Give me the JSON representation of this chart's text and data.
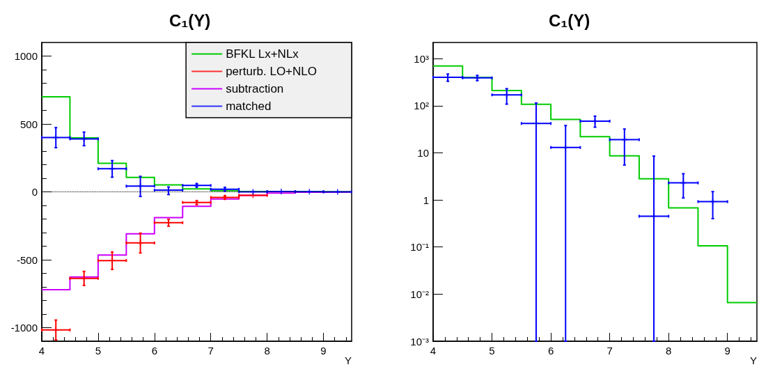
{
  "chart_data": [
    {
      "type": "histogram",
      "title": "C₁(Y)",
      "xlabel": "Y",
      "bins": [
        4,
        4.5,
        5,
        5.5,
        6,
        6.5,
        7,
        7.5,
        8,
        8.5,
        9,
        9.5
      ],
      "xlim": [
        4,
        9.5
      ],
      "xticks": [
        4,
        5,
        6,
        7,
        8,
        9
      ],
      "ylim": [
        -1100,
        1100
      ],
      "yticks": [
        -1000,
        -500,
        0,
        500,
        1000
      ],
      "legend": "top right",
      "marker": "cross",
      "ref_lines": [
        {
          "axis": "y",
          "value": 0,
          "line_style": "dotted",
          "color": "#000000"
        }
      ],
      "series": [
        {
          "name": "BFKL Lx+NLx",
          "color": "#00cc00",
          "values": [
            700,
            398,
            210,
            107,
            51,
            22,
            8.6,
            2.8,
            0.68,
            0.106,
            0.0066
          ]
        },
        {
          "name": "perturb. LO+NLO",
          "type": "scatter",
          "color": "#ff0000",
          "x": [
            4.25,
            4.75,
            5.25,
            5.75,
            6.25,
            6.75,
            7.25,
            7.75
          ],
          "values": [
            -1017,
            -637,
            -506,
            -376,
            -227,
            -78,
            -41,
            -26
          ],
          "errors": [
            [
              -1090,
              -944
            ],
            [
              -689,
              -586
            ],
            [
              -571,
              -443
            ],
            [
              -450,
              -304
            ],
            [
              -253,
              -202
            ],
            [
              -94,
              -66
            ],
            [
              -53,
              -29
            ],
            null
          ],
          "xerrors": [
            0.25,
            0.25,
            0.25,
            0.25,
            0.25,
            0.25,
            0.25,
            0.25
          ]
        },
        {
          "name": "subtraction",
          "color": "#cc00ff",
          "values": [
            -720,
            -627,
            -465,
            -309,
            -190,
            -106,
            -53,
            -26,
            -9,
            -3,
            -1
          ]
        },
        {
          "name": "matched",
          "type": "scatter",
          "color": "#0000ff",
          "x": [
            4.25,
            4.75,
            5.25,
            5.75,
            6.25,
            6.75,
            7.25,
            7.75,
            8.25,
            8.75,
            9.25
          ],
          "values": [
            400,
            390,
            170,
            42,
            13,
            47,
            19,
            0.45,
            2.3,
            0.92,
            0
          ],
          "errors": [
            [
              325,
              473
            ],
            [
              340,
              440
            ],
            [
              108,
              230
            ],
            [
              -34,
              114
            ],
            [
              -20,
              36
            ],
            [
              35,
              60
            ],
            [
              5.5,
              32
            ],
            null,
            null,
            null,
            null
          ],
          "xerrors": [
            0.25,
            0.25,
            0.25,
            0.25,
            0.25,
            0.25,
            0.25,
            0.25,
            0.25,
            0.25,
            0.25
          ]
        }
      ]
    },
    {
      "type": "histogram",
      "title": "C₁(Y)",
      "xlabel": "Y",
      "bins": [
        4,
        4.5,
        5,
        5.5,
        6,
        6.5,
        7,
        7.5,
        8,
        8.5,
        9,
        9.5
      ],
      "xlim": [
        4,
        9.5
      ],
      "xticks": [
        4,
        5,
        6,
        7,
        8,
        9
      ],
      "log": "y",
      "ylim": [
        0.001,
        2200
      ],
      "yticks": [
        {
          "value": 0.001,
          "label": "10⁻³"
        },
        {
          "value": 0.01,
          "label": "10⁻²"
        },
        {
          "value": 0.1,
          "label": "10⁻¹"
        },
        1,
        10,
        {
          "value": 100,
          "label": "10²"
        },
        {
          "value": 1000,
          "label": "10³"
        }
      ],
      "marker": "cross",
      "series": [
        {
          "color": "#00cc00",
          "values": [
            700,
            398,
            210,
            107,
            51,
            22,
            8.6,
            2.8,
            0.68,
            0.106,
            0.0066
          ]
        },
        {
          "type": "scatter",
          "color": "#0000ff",
          "x": [
            4.25,
            4.75,
            5.25,
            5.75,
            6.25,
            6.75,
            7.25,
            7.75,
            8.25,
            8.75
          ],
          "values": [
            400,
            390,
            170,
            42,
            13,
            47,
            19,
            0.45,
            2.3,
            0.92
          ],
          "errors": [
            [
              330,
              470
            ],
            [
              340,
              440
            ],
            [
              108,
              230
            ],
            [
              0.001,
              114
            ],
            [
              0.001,
              38
            ],
            [
              35,
              60
            ],
            [
              5.5,
              32
            ],
            [
              0.001,
              8.5
            ],
            [
              1.1,
              3.6
            ],
            [
              0.4,
              1.5
            ]
          ],
          "xerrors": [
            0.25,
            0.25,
            0.25,
            0.25,
            0.25,
            0.25,
            0.25,
            0.25,
            0.25,
            0.25
          ]
        }
      ]
    }
  ]
}
